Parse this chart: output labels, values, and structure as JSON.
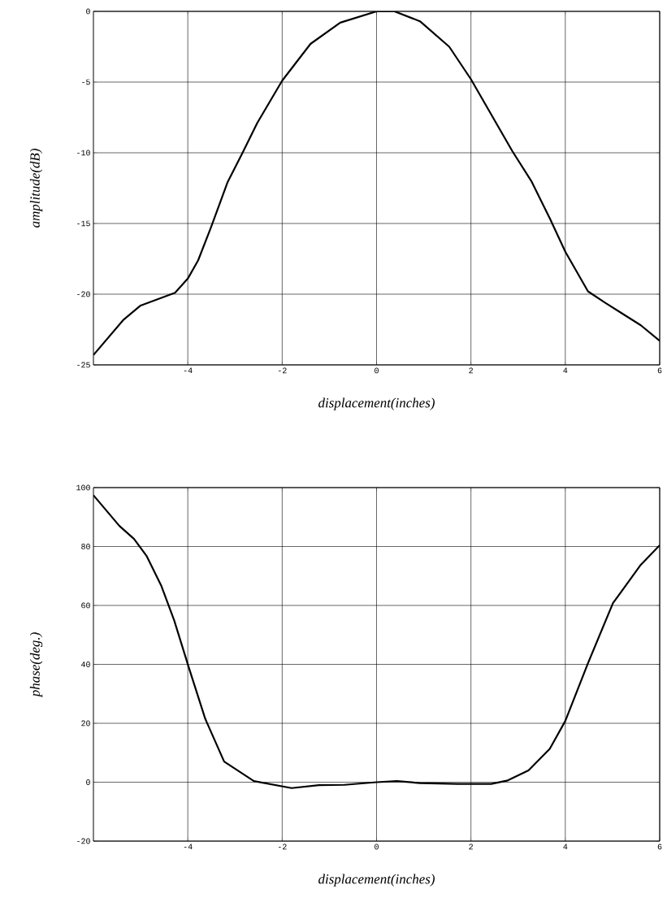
{
  "chart_data": [
    {
      "type": "line",
      "xlabel": "displacement(inches)",
      "ylabel": "amplitude(dB)",
      "xlim": [
        -6,
        6
      ],
      "ylim": [
        -25,
        0
      ],
      "xticks": [
        -4,
        -2,
        0,
        2,
        4,
        6
      ],
      "yticks": [
        -25,
        -20,
        -15,
        -10,
        -5,
        0
      ],
      "grid": true,
      "color": "#000000",
      "x": [
        -6,
        -5.36,
        -5.0,
        -4.27,
        -4,
        -3.78,
        -3.5,
        -3.16,
        -2.84,
        -2.53,
        -2,
        -1.4,
        -0.77,
        0,
        0.38,
        0.92,
        1.54,
        2,
        2.88,
        3.28,
        3.68,
        4,
        4.48,
        4.84,
        5.6,
        6
      ],
      "values": [
        -24.3,
        -21.8,
        -20.8,
        -19.9,
        -18.9,
        -17.6,
        -15.2,
        -12.1,
        -10.0,
        -7.9,
        -4.9,
        -2.3,
        -0.8,
        0,
        0,
        -0.7,
        -2.5,
        -4.8,
        -9.9,
        -12.0,
        -14.7,
        -17.0,
        -19.8,
        -20.6,
        -22.2,
        -23.3
      ]
    },
    {
      "type": "line",
      "xlabel": "displacement(inches)",
      "ylabel": "phase(deg.)",
      "xlim": [
        -6,
        6
      ],
      "ylim": [
        -20,
        100
      ],
      "xticks": [
        -4,
        -2,
        0,
        2,
        4,
        6
      ],
      "yticks": [
        -20,
        0,
        20,
        40,
        60,
        80,
        100
      ],
      "grid": true,
      "color": "#000000",
      "x": [
        -6,
        -5.45,
        -5.14,
        -4.87,
        -4.56,
        -4.29,
        -3.98,
        -3.63,
        -3.23,
        -2.6,
        -1.8,
        -1.22,
        -0.68,
        0,
        0.43,
        0.92,
        1.72,
        2.43,
        2.78,
        3.22,
        3.67,
        4,
        4.48,
        5.01,
        5.6,
        6
      ],
      "values": [
        97.4,
        87,
        82.6,
        76.7,
        66.6,
        55,
        39,
        21.5,
        7,
        0.4,
        -2,
        -1,
        -0.9,
        0,
        0.4,
        -0.3,
        -0.6,
        -0.6,
        0.6,
        4,
        11.3,
        20.8,
        40.4,
        60.8,
        73.8,
        80.4
      ]
    }
  ]
}
